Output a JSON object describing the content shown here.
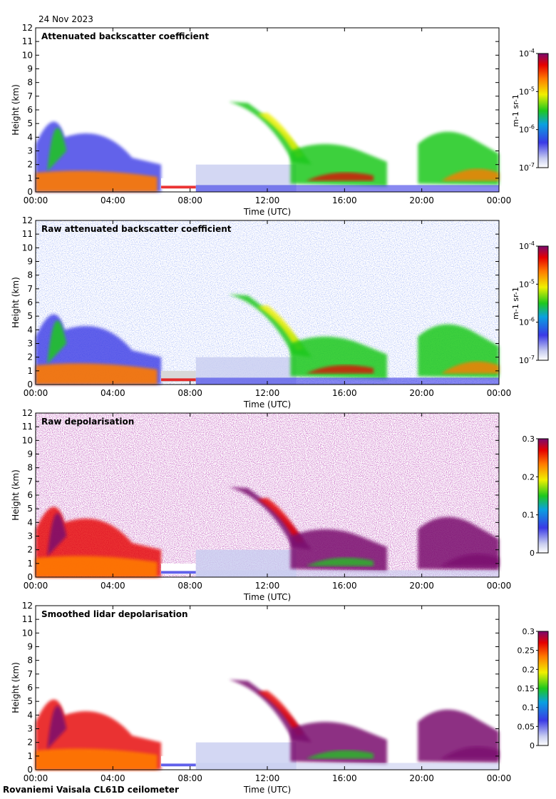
{
  "page": {
    "date": "24 Nov 2023",
    "footer": "Rovaniemi Vaisala CL61D ceilometer"
  },
  "chart_data": [
    {
      "type": "heatmap",
      "title": "Attenuated backscatter coefficient",
      "xlabel": "Time (UTC)",
      "ylabel": "Height (km)",
      "x_ticks": [
        "00:00",
        "04:00",
        "08:00",
        "12:00",
        "16:00",
        "20:00",
        "00:00"
      ],
      "y_ticks": [
        "0",
        "1",
        "2",
        "3",
        "4",
        "5",
        "6",
        "7",
        "8",
        "9",
        "10",
        "11",
        "12"
      ],
      "ylim": [
        0,
        12
      ],
      "colorbar": {
        "scale": "log",
        "ticks": [
          "10-7",
          "10-6",
          "10-5",
          "10-4"
        ],
        "label": "m-1 sr-1"
      }
    },
    {
      "type": "heatmap",
      "title": "Raw attenuated backscatter coefficient",
      "xlabel": "Time (UTC)",
      "ylabel": "Height (km)",
      "x_ticks": [
        "00:00",
        "04:00",
        "08:00",
        "12:00",
        "16:00",
        "20:00",
        "00:00"
      ],
      "y_ticks": [
        "0",
        "1",
        "2",
        "3",
        "4",
        "5",
        "6",
        "7",
        "8",
        "9",
        "10",
        "11",
        "12"
      ],
      "ylim": [
        0,
        12
      ],
      "colorbar": {
        "scale": "log",
        "ticks": [
          "10-7",
          "10-6",
          "10-5",
          "10-4"
        ],
        "label": "m-1 sr-1"
      }
    },
    {
      "type": "heatmap",
      "title": "Raw depolarisation",
      "xlabel": "Time (UTC)",
      "ylabel": "Height (km)",
      "x_ticks": [
        "00:00",
        "04:00",
        "08:00",
        "12:00",
        "16:00",
        "20:00",
        "00:00"
      ],
      "y_ticks": [
        "0",
        "1",
        "2",
        "3",
        "4",
        "5",
        "6",
        "7",
        "8",
        "9",
        "10",
        "11",
        "12"
      ],
      "ylim": [
        0,
        12
      ],
      "colorbar": {
        "scale": "linear",
        "ticks": [
          "0",
          "0.1",
          "0.2",
          "0.3"
        ],
        "label": ""
      }
    },
    {
      "type": "heatmap",
      "title": "Smoothed lidar depolarisation",
      "xlabel": "Time (UTC)",
      "ylabel": "Height (km)",
      "x_ticks": [
        "00:00",
        "04:00",
        "08:00",
        "12:00",
        "16:00",
        "20:00",
        "00:00"
      ],
      "y_ticks": [
        "0",
        "1",
        "2",
        "3",
        "4",
        "5",
        "6",
        "7",
        "8",
        "9",
        "10",
        "11",
        "12"
      ],
      "ylim": [
        0,
        12
      ],
      "colorbar": {
        "scale": "linear",
        "ticks": [
          "0",
          "0.05",
          "0.1",
          "0.15",
          "0.2",
          "0.25",
          "0.3"
        ],
        "label": ""
      }
    }
  ]
}
